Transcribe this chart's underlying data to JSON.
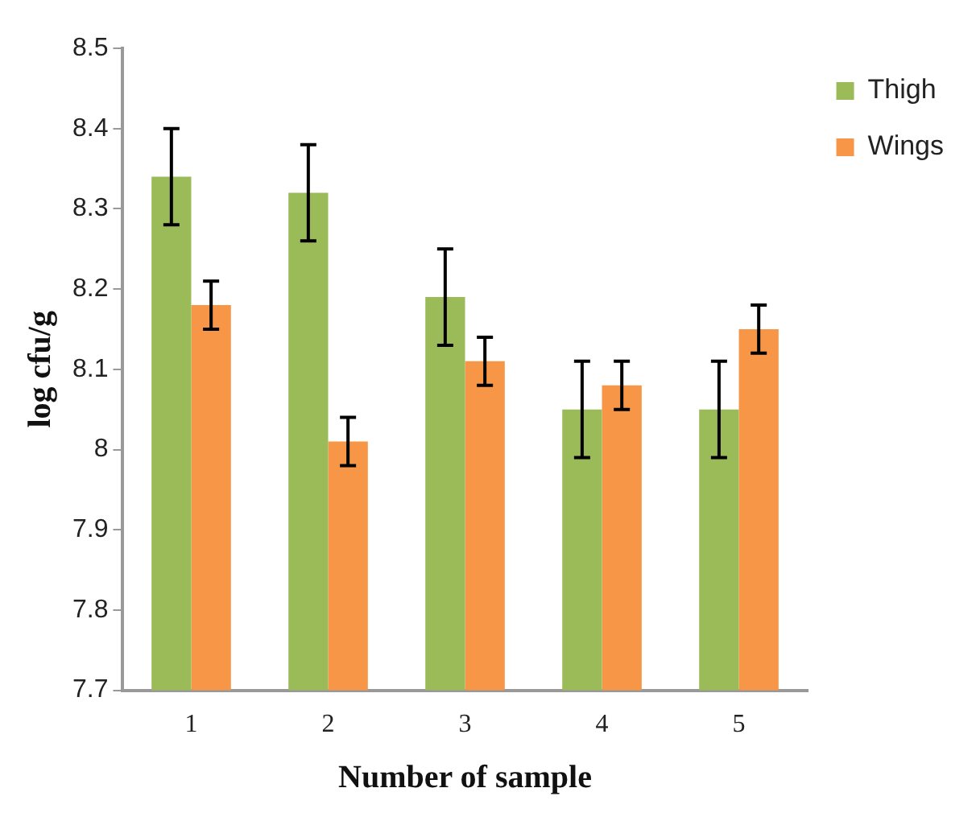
{
  "chart_data": {
    "type": "bar",
    "xlabel": "Number of sample",
    "ylabel": "log cfu/g",
    "categories": [
      "1",
      "2",
      "3",
      "4",
      "5"
    ],
    "series": [
      {
        "name": "Thigh",
        "color": "#9bbb59",
        "values": [
          8.34,
          8.32,
          8.19,
          8.05,
          8.05
        ],
        "errors": [
          0.06,
          0.06,
          0.06,
          0.06,
          0.06
        ]
      },
      {
        "name": "Wings",
        "color": "#f79646",
        "values": [
          8.18,
          8.01,
          8.11,
          8.08,
          8.15
        ],
        "errors": [
          0.03,
          0.03,
          0.03,
          0.03,
          0.03
        ]
      }
    ],
    "ylim": [
      7.7,
      8.5
    ],
    "yticks": [
      7.7,
      7.8,
      7.9,
      8,
      8.1,
      8.2,
      8.3,
      8.4,
      8.5
    ],
    "grid": false,
    "legend": "top right"
  }
}
